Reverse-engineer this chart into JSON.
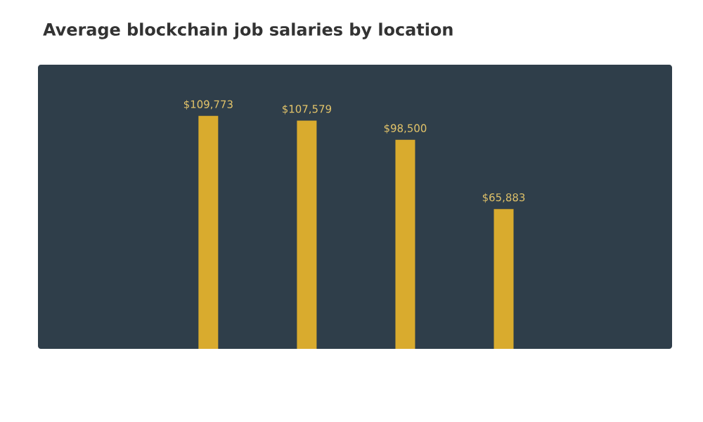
{
  "chart_data": {
    "type": "bar",
    "title": "Average blockchain job salaries by location",
    "categories": [
      null,
      null,
      null,
      null
    ],
    "values": [
      109773,
      107579,
      98500,
      65883
    ],
    "value_labels": [
      "$109,773",
      "$107,579",
      "$98,500",
      "$65,883"
    ],
    "color": "#d9ab2e"
  }
}
